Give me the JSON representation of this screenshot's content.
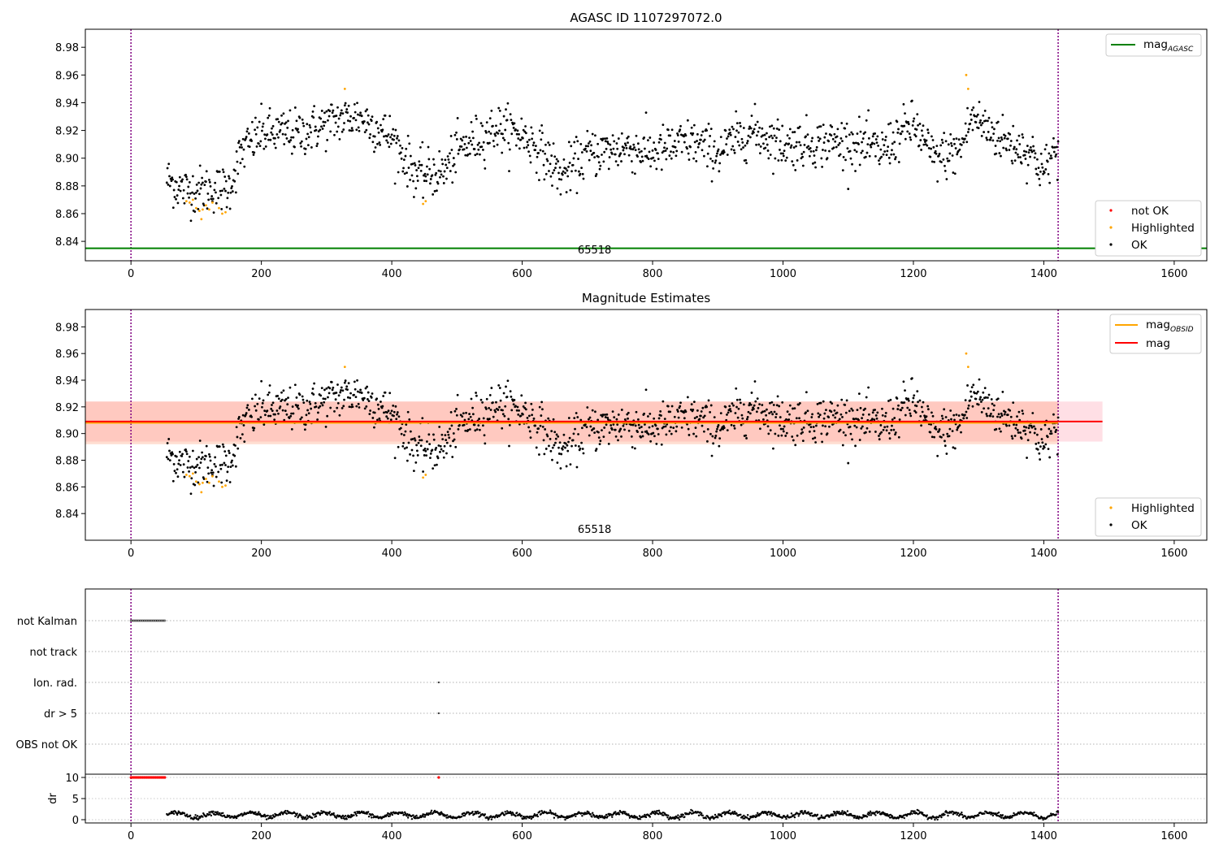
{
  "chart_data": [
    {
      "type": "scatter",
      "title": "AGASC ID 1107297072.0",
      "xlim": [
        -70,
        1650
      ],
      "ylim": [
        8.826,
        8.993
      ],
      "x_ticks": [
        0,
        200,
        400,
        600,
        800,
        1000,
        1200,
        1400,
        1600
      ],
      "x_tick_labels": [
        "0",
        "200",
        "400",
        "600",
        "800",
        "1000",
        "1200",
        "1400",
        "1600"
      ],
      "y_ticks": [
        8.84,
        8.86,
        8.88,
        8.9,
        8.92,
        8.94,
        8.96,
        8.98
      ],
      "y_tick_labels": [
        "8.84",
        "8.86",
        "8.88",
        "8.90",
        "8.92",
        "8.94",
        "8.96",
        "8.98"
      ],
      "vlines": [
        0,
        1422
      ],
      "hline": {
        "y": 8.835,
        "color": "#008000"
      },
      "annotation": {
        "text": "65518",
        "x": 711
      },
      "legend_top": [
        {
          "label": "mag",
          "sub": "AGASC",
          "color": "#008000",
          "kind": "line"
        }
      ],
      "legend_bottom": [
        {
          "label": "not OK",
          "color": "#ff0000"
        },
        {
          "label": "Highlighted",
          "color": "#ffa500"
        },
        {
          "label": "OK",
          "color": "#000000"
        }
      ],
      "series": [
        {
          "name": "OK",
          "color": "#000000",
          "x_range": [
            55,
            1422
          ],
          "trend": [
            [
              55,
              8.885
            ],
            [
              80,
              8.877
            ],
            [
              150,
              8.878
            ],
            [
              170,
              8.905
            ],
            [
              200,
              8.918
            ],
            [
              260,
              8.918
            ],
            [
              320,
              8.928
            ],
            [
              350,
              8.93
            ],
            [
              400,
              8.915
            ],
            [
              420,
              8.9
            ],
            [
              440,
              8.888
            ],
            [
              480,
              8.89
            ],
            [
              500,
              8.905
            ],
            [
              560,
              8.922
            ],
            [
              600,
              8.917
            ],
            [
              630,
              8.905
            ],
            [
              660,
              8.887
            ],
            [
              700,
              8.903
            ],
            [
              760,
              8.908
            ],
            [
              800,
              8.904
            ],
            [
              860,
              8.912
            ],
            [
              900,
              8.904
            ],
            [
              950,
              8.92
            ],
            [
              1000,
              8.91
            ],
            [
              1100,
              8.912
            ],
            [
              1150,
              8.905
            ],
            [
              1200,
              8.925
            ],
            [
              1230,
              8.9
            ],
            [
              1270,
              8.905
            ],
            [
              1290,
              8.93
            ],
            [
              1340,
              8.912
            ],
            [
              1380,
              8.905
            ],
            [
              1400,
              8.89
            ],
            [
              1422,
              8.91
            ]
          ]
        },
        {
          "name": "Highlighted",
          "color": "#ffa500",
          "points": [
            [
              85,
              8.869
            ],
            [
              90,
              8.868
            ],
            [
              95,
              8.87
            ],
            [
              100,
              8.864
            ],
            [
              105,
              8.862
            ],
            [
              110,
              8.863
            ],
            [
              115,
              8.866
            ],
            [
              120,
              8.863
            ],
            [
              125,
              8.868
            ],
            [
              135,
              8.864
            ],
            [
              140,
              8.86
            ],
            [
              145,
              8.861
            ],
            [
              108,
              8.856
            ],
            [
              328,
              8.95
            ],
            [
              448,
              8.867
            ],
            [
              452,
              8.869
            ],
            [
              1281,
              8.96
            ],
            [
              1284,
              8.95
            ]
          ]
        }
      ]
    },
    {
      "type": "scatter",
      "title": "Magnitude Estimates",
      "xlim": [
        -70,
        1650
      ],
      "ylim": [
        8.82,
        8.993
      ],
      "x_ticks": [
        0,
        200,
        400,
        600,
        800,
        1000,
        1200,
        1400,
        1600
      ],
      "x_tick_labels": [
        "0",
        "200",
        "400",
        "600",
        "800",
        "1000",
        "1200",
        "1400",
        "1600"
      ],
      "y_ticks": [
        8.84,
        8.86,
        8.88,
        8.9,
        8.92,
        8.94,
        8.96,
        8.98
      ],
      "y_tick_labels": [
        "8.84",
        "8.86",
        "8.88",
        "8.90",
        "8.92",
        "8.94",
        "8.96",
        "8.98"
      ],
      "vlines": [
        0,
        1422
      ],
      "annotation": {
        "text": "65518",
        "x": 711
      },
      "bands": [
        {
          "x": [
            -70,
            1490
          ],
          "y": [
            8.894,
            8.924
          ],
          "color": "#ffc0cb",
          "opacity": 0.5
        },
        {
          "x": [
            -70,
            1422
          ],
          "y": [
            8.892,
            8.924
          ],
          "color": "#ffa07a",
          "opacity": 0.35
        }
      ],
      "lines": [
        {
          "name": "mag_OBSID",
          "y": 8.908,
          "x": [
            -70,
            1422
          ],
          "color": "#ffa500"
        },
        {
          "name": "mag",
          "y": 8.909,
          "x": [
            -70,
            1490
          ],
          "color": "#ff0000"
        }
      ],
      "legend_top": [
        {
          "label": "mag",
          "sub": "OBSID",
          "color": "#ffa500",
          "kind": "line"
        },
        {
          "label": "mag",
          "color": "#ff0000",
          "kind": "line"
        }
      ],
      "legend_bottom": [
        {
          "label": "Highlighted",
          "color": "#ffa500"
        },
        {
          "label": "OK",
          "color": "#000000"
        }
      ]
    },
    {
      "type": "scatter",
      "title": "",
      "xlim": [
        -70,
        1650
      ],
      "x_ticks": [
        0,
        200,
        400,
        600,
        800,
        1000,
        1200,
        1400,
        1600
      ],
      "x_tick_labels": [
        "0",
        "200",
        "400",
        "600",
        "800",
        "1000",
        "1200",
        "1400",
        "1600"
      ],
      "flag_rows": [
        "not Kalman",
        "not track",
        "Ion. rad.",
        "dr > 5",
        "OBS not OK"
      ],
      "flag_points": [
        {
          "row": "not Kalman",
          "x_range": [
            0,
            52
          ]
        },
        {
          "row": "Ion. rad.",
          "x": 472
        },
        {
          "row": "dr > 5",
          "x": 472
        }
      ],
      "dr_ylabel": "dr",
      "dr_ylim": [
        0,
        10
      ],
      "dr_y_ticks": [
        0,
        5,
        10
      ],
      "dr_y_tick_labels": [
        "0",
        "5",
        "10"
      ],
      "dr_capped_points": [
        {
          "x_range": [
            0,
            52
          ],
          "y": 10
        },
        {
          "x": 472,
          "y": 10
        }
      ],
      "dr_x_range": [
        55,
        1422
      ],
      "vlines": [
        0,
        1422
      ]
    }
  ]
}
